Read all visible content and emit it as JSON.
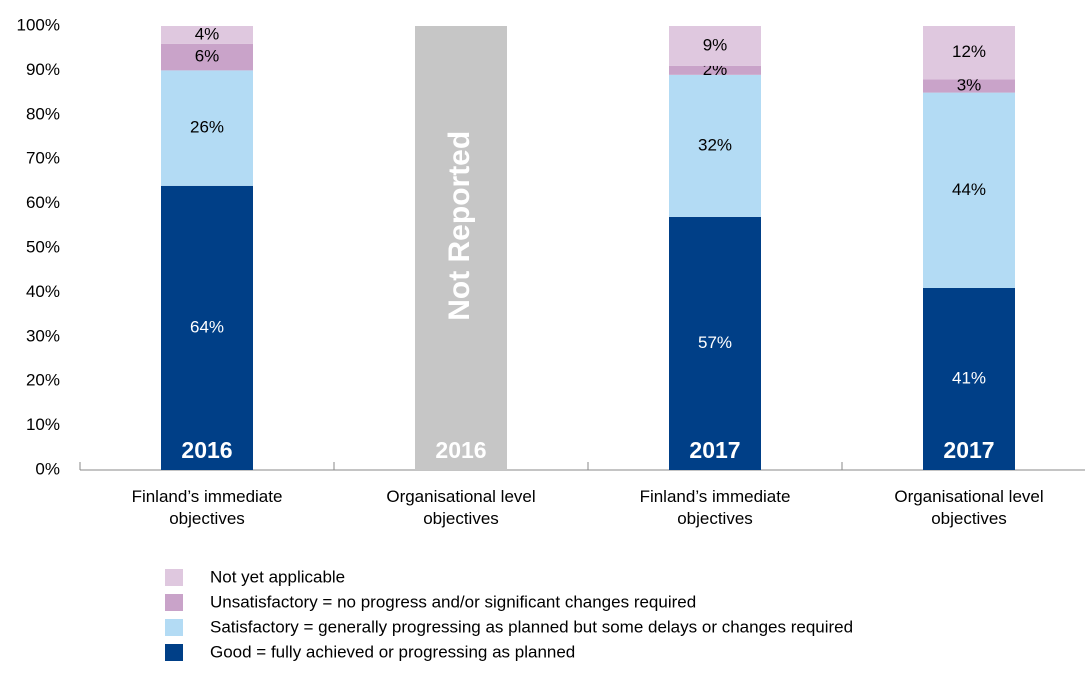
{
  "chart_data": {
    "type": "stacked_bar",
    "categories": [
      "Finland’s immediate objectives",
      "Organisational level objectives",
      "Finland’s immediate objectives",
      "Organisational level objectives"
    ],
    "year_labels": [
      "2016",
      "2016",
      "2017",
      "2017"
    ],
    "annotation": "Not Reported",
    "series": [
      {
        "name": "Good = fully achieved or progressing as planned",
        "color": "#003f87",
        "label_color": "#ffffff",
        "values": [
          64,
          null,
          57,
          41
        ],
        "value_labels": [
          "64%",
          null,
          "57%",
          "41%"
        ]
      },
      {
        "name": "Satisfactory = generally progressing as planned but some delays or changes required",
        "color": "#b3dbf4",
        "label_color": "#000000",
        "values": [
          26,
          null,
          32,
          44
        ],
        "value_labels": [
          "26%",
          null,
          "32%",
          "44%"
        ]
      },
      {
        "name": "Unsatisfactory = no progress and/or significant changes required",
        "color": "#c9a3c9",
        "label_color": "#000000",
        "values": [
          6,
          null,
          2,
          3
        ],
        "value_labels": [
          "6%",
          null,
          "2%",
          "3%"
        ]
      },
      {
        "name": "Not yet applicable",
        "color": "#dfc8df",
        "label_color": "#000000",
        "values": [
          4,
          null,
          9,
          12
        ],
        "value_labels": [
          "4%",
          null,
          "9%",
          "12%"
        ]
      }
    ],
    "ylim": [
      0,
      100
    ],
    "yticks": [
      {
        "value": 0,
        "label": "0%"
      },
      {
        "value": 10,
        "label": "10%"
      },
      {
        "value": 20,
        "label": "20%"
      },
      {
        "value": 30,
        "label": "30%"
      },
      {
        "value": 40,
        "label": "40%"
      },
      {
        "value": 50,
        "label": "50%"
      },
      {
        "value": 60,
        "label": "60%"
      },
      {
        "value": 70,
        "label": "70%"
      },
      {
        "value": 80,
        "label": "80%"
      },
      {
        "value": 90,
        "label": "90%"
      },
      {
        "value": 100,
        "label": "100%"
      }
    ]
  }
}
